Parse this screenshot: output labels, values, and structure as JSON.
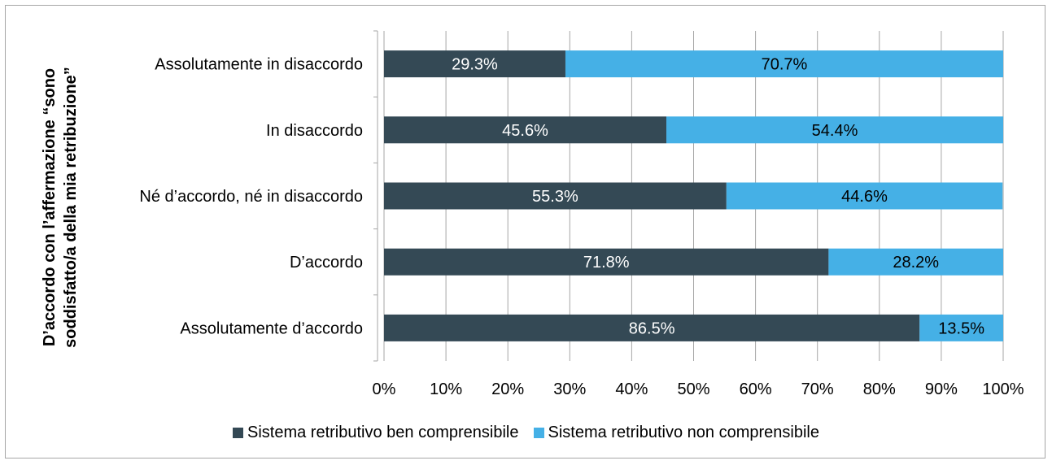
{
  "chart_data": {
    "type": "bar",
    "orientation": "horizontal",
    "stacked": true,
    "percent": true,
    "ylabel_lines": [
      "D’accordo con l’affermazione “sono",
      "soddisfatto/a della mia retribuzione”"
    ],
    "categories": [
      "Assolutamente in disaccordo",
      "In disaccordo",
      "Né d’accordo, né in disaccordo",
      "D’accordo",
      "Assolutamente d’accordo"
    ],
    "series": [
      {
        "name": "Sistema retributivo ben comprensibile",
        "color": "#344955",
        "values": [
          29.3,
          45.6,
          55.3,
          71.8,
          86.5
        ],
        "labels": [
          "29.3%",
          "45.6%",
          "55.3%",
          "71.8%",
          "86.5%"
        ]
      },
      {
        "name": "Sistema retributivo non comprensibile",
        "color": "#45b0e6",
        "values": [
          70.7,
          54.4,
          44.6,
          28.2,
          13.5
        ],
        "labels": [
          "70.7%",
          "54.4%",
          "44.6%",
          "28.2%",
          "13.5%"
        ]
      }
    ],
    "xlim": [
      0,
      100
    ],
    "xticks": [
      "0%",
      "10%",
      "20%",
      "30%",
      "40%",
      "50%",
      "60%",
      "70%",
      "80%",
      "90%",
      "100%"
    ],
    "grid": "vertical",
    "legend": "bottom"
  }
}
